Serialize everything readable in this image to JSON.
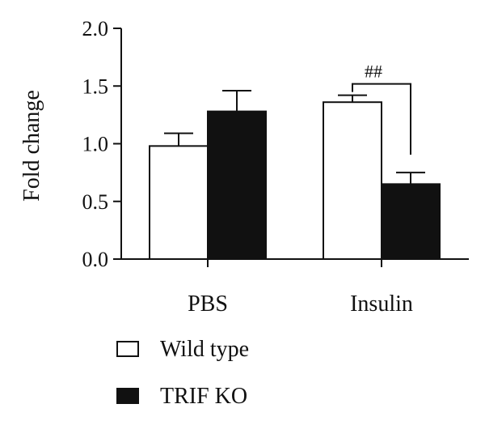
{
  "chart_data": {
    "type": "bar",
    "ylabel": "Fold change",
    "ylim": [
      0,
      2.0
    ],
    "yticks": [
      "0.0",
      "0.5",
      "1.0",
      "1.5",
      "2.0"
    ],
    "categories": [
      "PBS",
      "Insulin"
    ],
    "series": [
      {
        "name": "Wild type",
        "values": [
          0.98,
          1.36
        ],
        "errors": [
          0.11,
          0.06
        ],
        "color": "#ffffff"
      },
      {
        "name": "TRIF KO",
        "values": [
          1.28,
          0.65
        ],
        "errors": [
          0.18,
          0.1
        ],
        "color": "#111111"
      }
    ],
    "annotations": [
      {
        "text": "##",
        "category": "Insulin"
      }
    ],
    "legend_position": "bottom-left"
  }
}
